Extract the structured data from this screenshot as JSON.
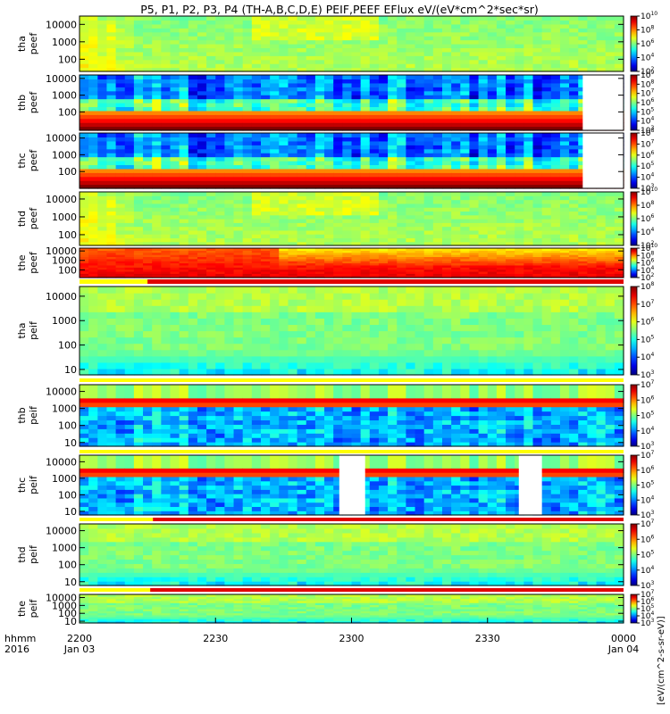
{
  "chart_data": {
    "type": "heatmap",
    "title": "P5, P1, P2, P3, P4 (TH-A,B,C,D,E) PEIF,PEEF EFlux eV/(eV*cm^2*sec*sr)",
    "time_label": "hhmm",
    "year_label": "2016",
    "x_ticks": [
      {
        "label": "2200",
        "date": "Jan 03",
        "hour": 22.0
      },
      {
        "label": "2230",
        "date": "",
        "hour": 22.5
      },
      {
        "label": "2300",
        "date": "",
        "hour": 23.0
      },
      {
        "label": "2330",
        "date": "",
        "hour": 23.5
      },
      {
        "label": "0000",
        "date": "Jan 04",
        "hour": 24.0
      }
    ],
    "xlim_hours": [
      22.0,
      24.0
    ],
    "yscale": "log",
    "colorbar_label": "[eV/(cm^2-s-sr-eV)]",
    "panels": [
      {
        "probe": "tha",
        "product": "peef",
        "ylim": [
          20,
          30000
        ],
        "yticks": [
          100,
          1000,
          10000
        ],
        "ytick_labels": [
          "100",
          "1000",
          "10000"
        ],
        "cbar_range_exp": [
          2,
          10
        ],
        "cbar_ticks_exp": [
          2,
          4,
          6,
          8,
          10
        ],
        "bar": null,
        "gaps": [],
        "pattern": "green"
      },
      {
        "probe": "thb",
        "product": "peef",
        "ylim": [
          8,
          16000
        ],
        "yticks": [
          100,
          1000,
          10000
        ],
        "ytick_labels": [
          "100",
          "1000",
          "10000"
        ],
        "cbar_range_exp": [
          3,
          9
        ],
        "cbar_ticks_exp": [
          3,
          4,
          5,
          6,
          7,
          8,
          9
        ],
        "bar": null,
        "gaps": [
          [
            23.85,
            24.0
          ]
        ],
        "pattern": "banded"
      },
      {
        "probe": "thc",
        "product": "peef",
        "ylim": [
          10,
          20000
        ],
        "yticks": [
          100,
          1000,
          10000
        ],
        "ytick_labels": [
          "100",
          "1000",
          "10000"
        ],
        "cbar_range_exp": [
          3,
          8
        ],
        "cbar_ticks_exp": [
          3,
          4,
          5,
          6,
          7,
          8
        ],
        "bar": null,
        "gaps": [
          [
            23.85,
            24.0
          ]
        ],
        "pattern": "banded"
      },
      {
        "probe": "thd",
        "product": "peef",
        "ylim": [
          25,
          25000
        ],
        "yticks": [
          100,
          1000,
          10000
        ],
        "ytick_labels": [
          "100",
          "1000",
          "10000"
        ],
        "cbar_range_exp": [
          2,
          10
        ],
        "cbar_ticks_exp": [
          2,
          4,
          6,
          8,
          10
        ],
        "bar": null,
        "gaps": [],
        "pattern": "green"
      },
      {
        "probe": "the",
        "product": "peef",
        "ylim": [
          15,
          20000
        ],
        "yticks": [
          100,
          1000,
          10000
        ],
        "ytick_labels": [
          "100",
          "1000",
          "10000"
        ],
        "cbar_range_exp": [
          2,
          10
        ],
        "cbar_ticks_exp": [
          2,
          4,
          6,
          8,
          10
        ],
        "bar": {
          "yellow_until": 22.25
        },
        "gaps": [],
        "pattern": "red"
      },
      {
        "probe": "tha",
        "product": "peif",
        "ylim": [
          6,
          25000
        ],
        "yticks": [
          10,
          100,
          1000,
          10000
        ],
        "ytick_labels": [
          "10",
          "100",
          "1000",
          "10000"
        ],
        "cbar_range_exp": [
          3,
          8
        ],
        "cbar_ticks_exp": [
          3,
          4,
          5,
          6,
          7,
          8
        ],
        "bar": {
          "yellow_until": 24.0
        },
        "gaps": [],
        "pattern": "ion"
      },
      {
        "probe": "thb",
        "product": "peif",
        "ylim": [
          6,
          25000
        ],
        "yticks": [
          10,
          100,
          1000,
          10000
        ],
        "ytick_labels": [
          "10",
          "100",
          "1000",
          "10000"
        ],
        "cbar_range_exp": [
          3,
          7
        ],
        "cbar_ticks_exp": [
          3,
          4,
          5,
          6,
          7
        ],
        "bar": {
          "yellow_until": 24.0
        },
        "gaps": [],
        "pattern": "ionband"
      },
      {
        "probe": "thc",
        "product": "peif",
        "ylim": [
          6,
          25000
        ],
        "yticks": [
          10,
          100,
          1000,
          10000
        ],
        "ytick_labels": [
          "10",
          "100",
          "1000",
          "10000"
        ],
        "cbar_range_exp": [
          3,
          7
        ],
        "cbar_ticks_exp": [
          3,
          4,
          5,
          6,
          7
        ],
        "bar": {
          "yellow_until": 22.27
        },
        "gaps": [
          [
            22.955,
            23.05
          ],
          [
            23.615,
            23.7
          ]
        ],
        "pattern": "ionband"
      },
      {
        "probe": "thd",
        "product": "peif",
        "ylim": [
          6,
          25000
        ],
        "yticks": [
          10,
          100,
          1000,
          10000
        ],
        "ytick_labels": [
          "10",
          "100",
          "1000",
          "10000"
        ],
        "cbar_range_exp": [
          3,
          7
        ],
        "cbar_ticks_exp": [
          3,
          4,
          5,
          6,
          7
        ],
        "bar": {
          "yellow_until": 22.26
        },
        "gaps": [],
        "pattern": "ion"
      },
      {
        "probe": "the",
        "product": "peif",
        "ylim": [
          6,
          25000
        ],
        "yticks": [
          10,
          100,
          1000,
          10000
        ],
        "ytick_labels": [
          "10",
          "100",
          "1000",
          "10000"
        ],
        "cbar_range_exp": [
          3,
          7
        ],
        "cbar_ticks_exp": [
          3,
          4,
          5,
          6,
          7
        ],
        "bar": null,
        "gaps": [],
        "pattern": "ion"
      }
    ]
  }
}
